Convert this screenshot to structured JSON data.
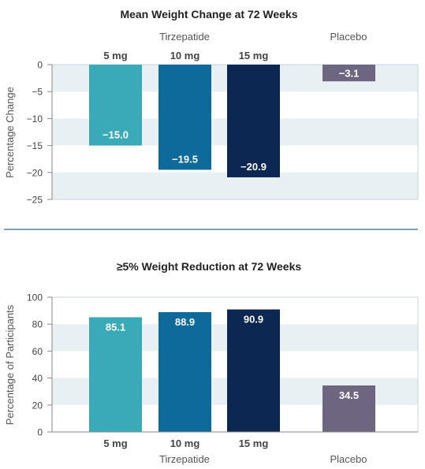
{
  "colors": {
    "tirzepatide_5mg": "#3aaab8",
    "tirzepatide_10mg": "#0d6a9a",
    "tirzepatide_15mg": "#0b2752",
    "placebo": "#6e6580",
    "band": "#e9f0f3",
    "axis": "#888888",
    "divider": "#2f6f8f"
  },
  "chart_data": [
    {
      "type": "bar",
      "title": "Mean Weight Change at 72 Weeks",
      "ylabel": "Percentage Change",
      "ylim": [
        -25,
        0
      ],
      "yticks": [
        0,
        -5,
        -10,
        -15,
        -20,
        -25
      ],
      "ytick_labels": [
        "0",
        "−5",
        "−10",
        "−15",
        "−20",
        "−25"
      ],
      "group_labels": [
        "Tirzepatide",
        "Placebo"
      ],
      "categories": [
        "5 mg",
        "10 mg",
        "15 mg",
        ""
      ],
      "values": [
        -15.0,
        -19.5,
        -20.9,
        -3.1
      ],
      "value_labels": [
        "−15.0",
        "−19.5",
        "−20.9",
        "−3.1"
      ],
      "category_labels_position": "top",
      "grid": "alternating bands"
    },
    {
      "type": "bar",
      "title": "≥5% Weight Reduction at 72 Weeks",
      "ylabel": "Percentage of Participants",
      "ylim": [
        0,
        100
      ],
      "yticks": [
        0,
        20,
        40,
        60,
        80,
        100
      ],
      "ytick_labels": [
        "0",
        "20",
        "40",
        "60",
        "80",
        "100"
      ],
      "group_labels": [
        "Tirzepatide",
        "Placebo"
      ],
      "categories": [
        "5 mg",
        "10 mg",
        "15 mg",
        ""
      ],
      "values": [
        85.1,
        88.9,
        90.9,
        34.5
      ],
      "value_labels": [
        "85.1",
        "88.9",
        "90.9",
        "34.5"
      ],
      "category_labels_position": "bottom",
      "grid": "alternating bands"
    }
  ]
}
